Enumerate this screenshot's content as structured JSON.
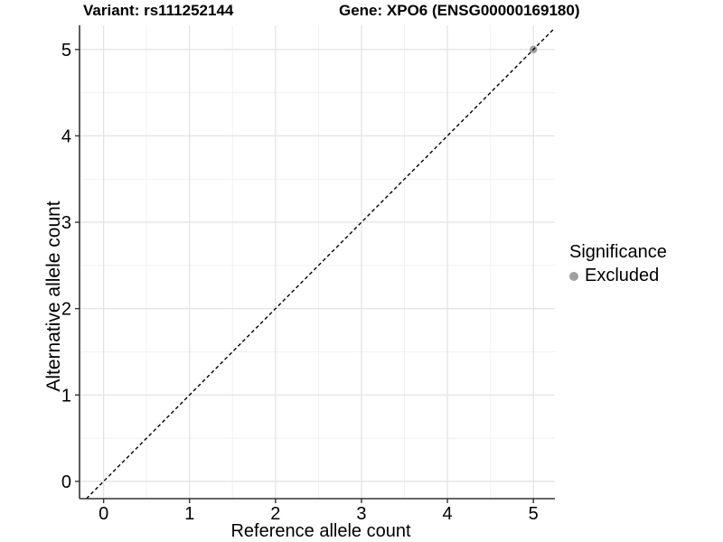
{
  "chart_data": {
    "type": "scatter",
    "title_left": "Variant: rs111252144",
    "title_right": "Gene: XPO6 (ENSG00000169180)",
    "xlabel": "Reference allele count",
    "ylabel": "Alternative allele count",
    "xlim": [
      -0.28,
      5.25
    ],
    "ylim": [
      -0.2,
      5.28
    ],
    "xticks": [
      0,
      1,
      2,
      3,
      4,
      5
    ],
    "yticks": [
      0,
      1,
      2,
      3,
      4,
      5
    ],
    "minor_gridlines_x": [
      0.5,
      1.5,
      2.5,
      3.5,
      4.5
    ],
    "minor_gridlines_y": [
      0.5,
      1.5,
      2.5,
      3.5,
      4.5
    ],
    "grid": true,
    "identity_line": {
      "equation": "y = x",
      "style": "dashed",
      "color": "#000000"
    },
    "series": [
      {
        "name": "Excluded",
        "color": "#a0a0a0",
        "points": [
          [
            5,
            5
          ]
        ]
      }
    ],
    "legend": {
      "title": "Significance",
      "position": "right",
      "entries": [
        {
          "label": "Excluded",
          "color": "#a0a0a0",
          "marker": "circle"
        }
      ]
    },
    "colors": {
      "background": "#ffffff",
      "panel_background": "#ffffff",
      "grid_major": "#e2e2e2",
      "grid_minor": "#f1f1f1",
      "axis_line": "#333333",
      "tick_mark": "#333333",
      "text": "#000000"
    }
  }
}
